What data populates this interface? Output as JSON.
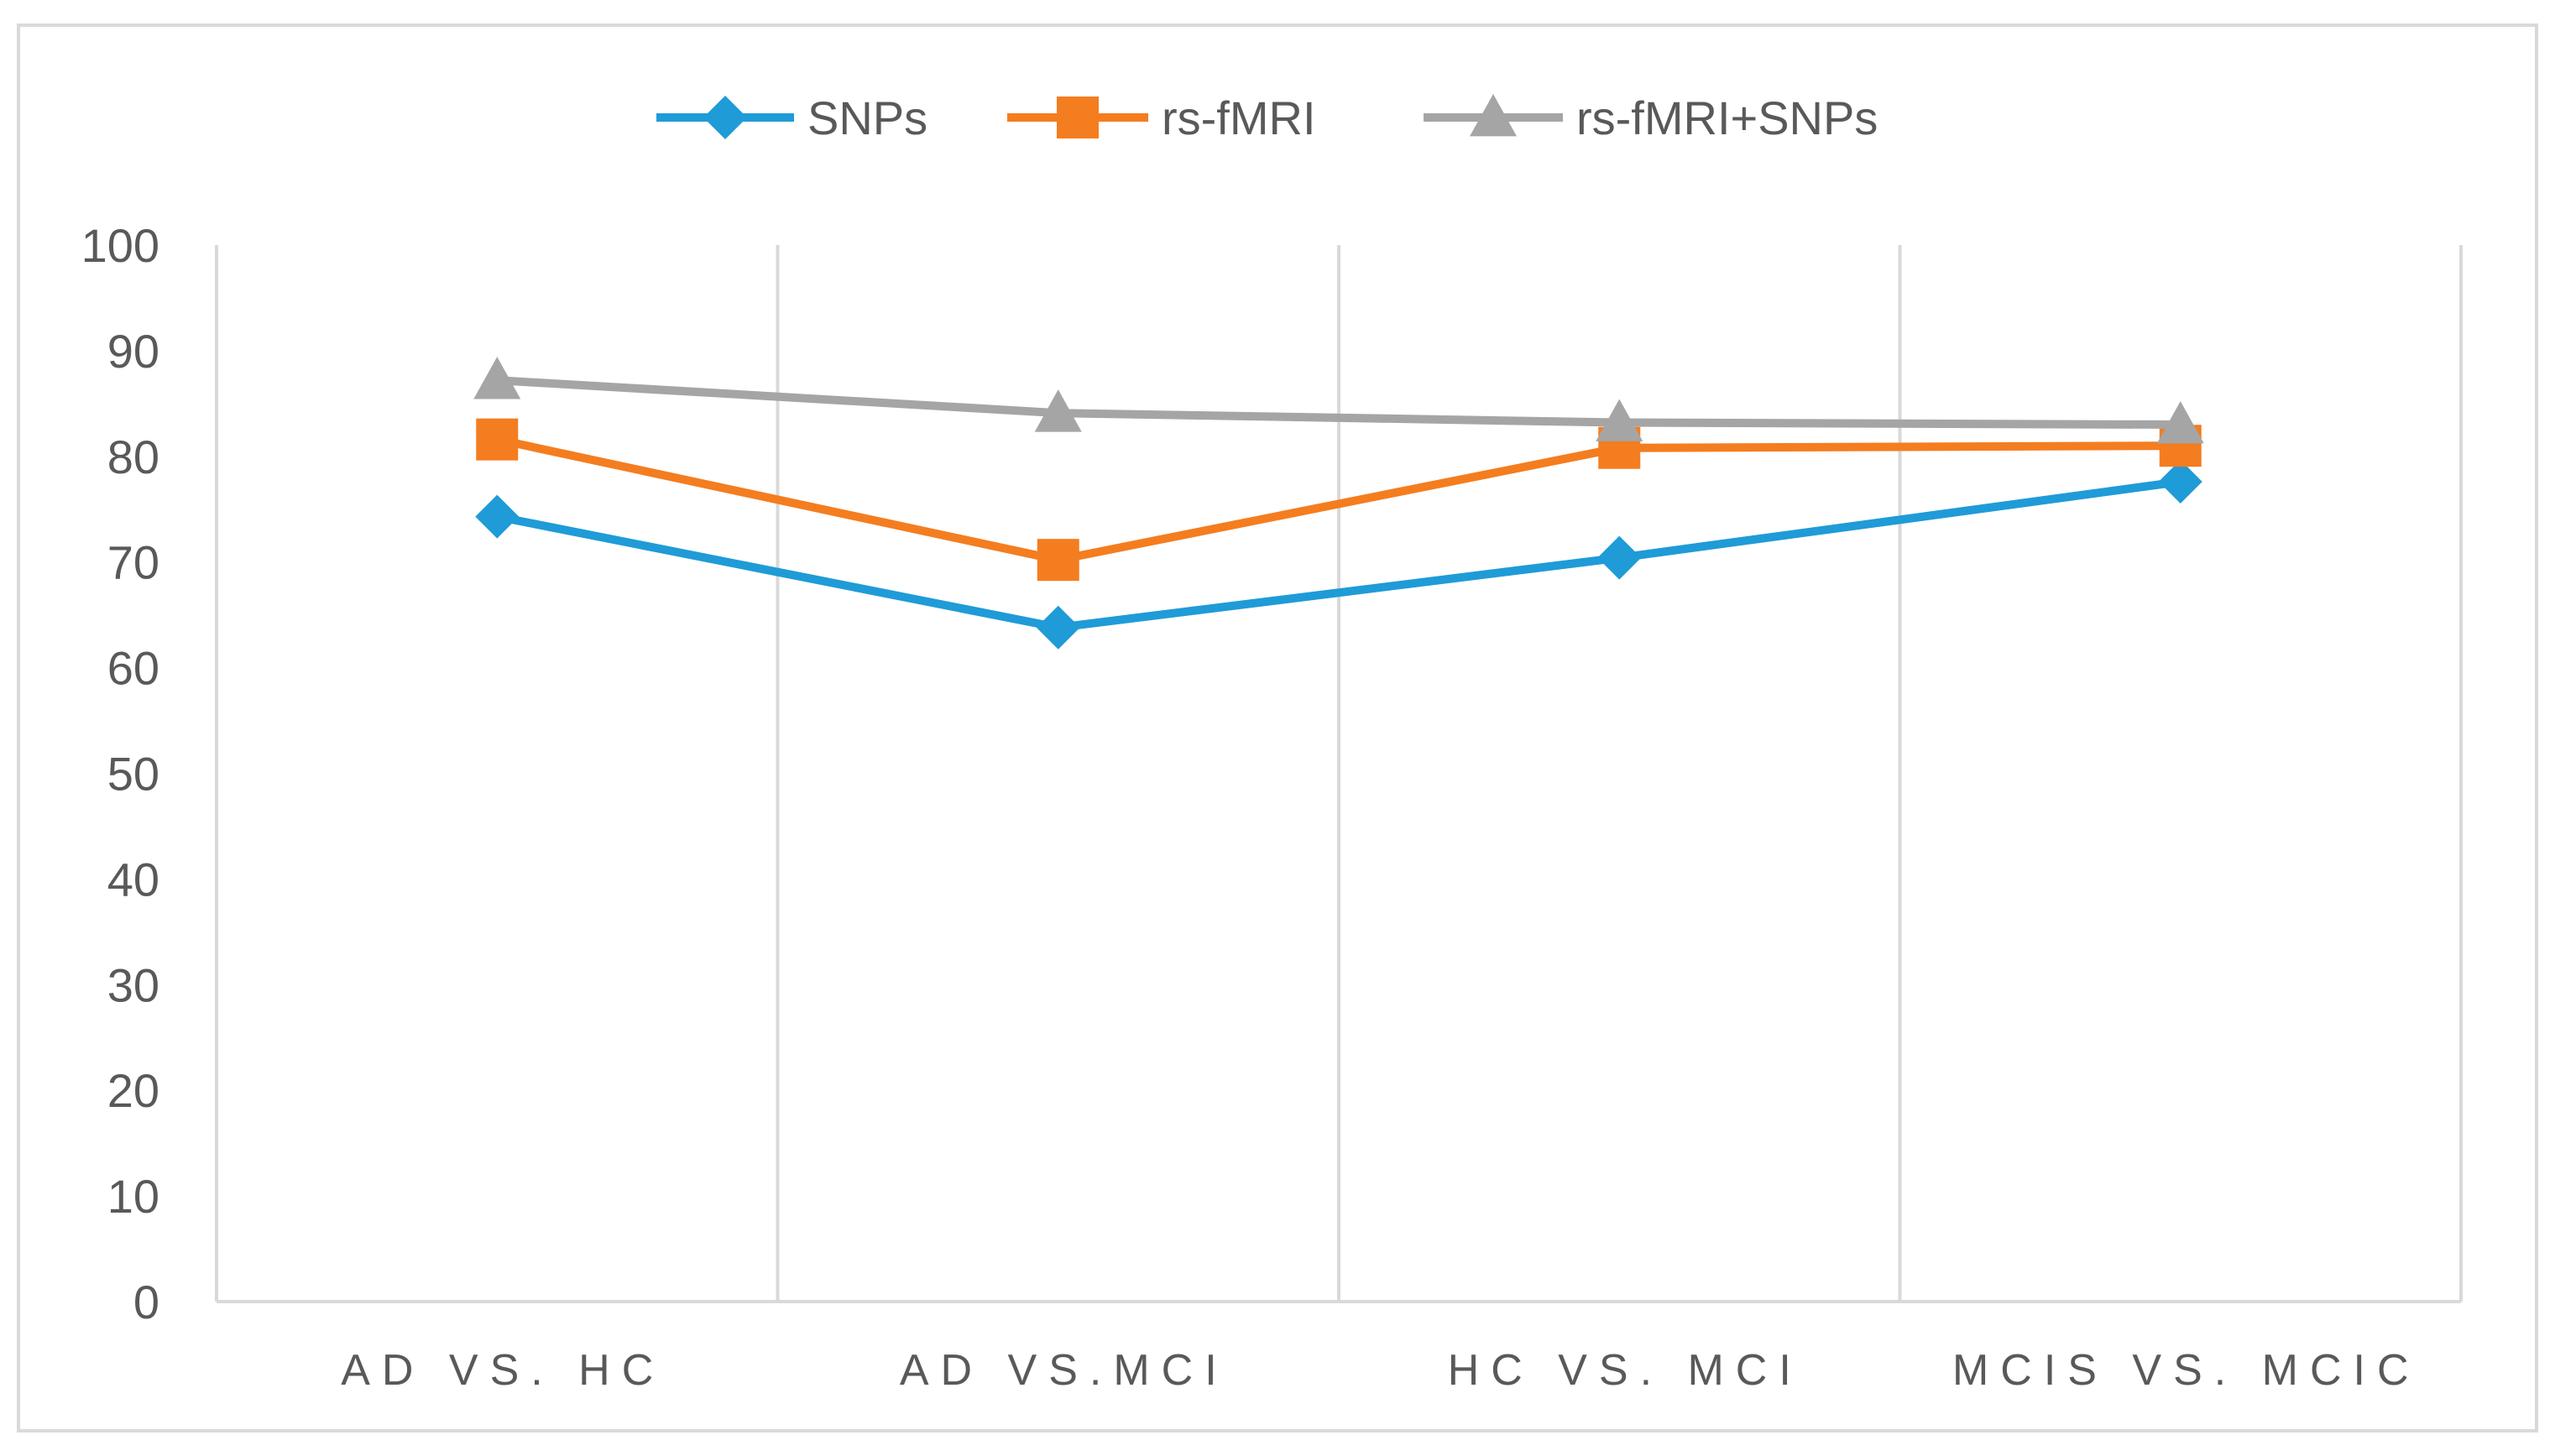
{
  "chart_data": {
    "type": "line",
    "title": "",
    "xlabel": "",
    "ylabel": "",
    "ylim": [
      0,
      100
    ],
    "yticks": [
      0,
      10,
      20,
      30,
      40,
      50,
      60,
      70,
      80,
      90,
      100
    ],
    "grid": "vertical",
    "legend_position": "top-center",
    "categories": [
      "AD VS. HC",
      "AD VS.MCI",
      "HC VS. MCI",
      "MCIS VS. MCIC"
    ],
    "series": [
      {
        "name": "SNPs",
        "values": [
          74.3,
          63.8,
          70.4,
          77.6
        ],
        "color": "#1f9bd7",
        "marker": "diamond"
      },
      {
        "name": "rs-fMRI",
        "values": [
          81.6,
          70.2,
          80.8,
          81.0
        ],
        "color": "#f47d20",
        "marker": "square"
      },
      {
        "name": "rs-fMRI+SNPs",
        "values": [
          87.2,
          84.1,
          83.2,
          83.0
        ],
        "color": "#a5a5a5",
        "marker": "triangle"
      }
    ]
  }
}
